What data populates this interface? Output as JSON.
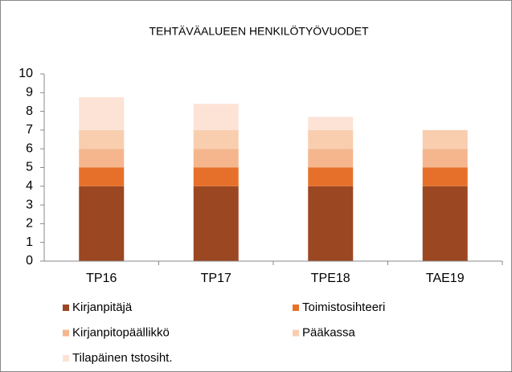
{
  "chart_data": {
    "type": "stacked_bar",
    "title": "TEHTÄVÄALUEEN  HENKILÖTYÖVUODET",
    "categories": [
      "TP16",
      "TP17",
      "TPE18",
      "TAE19"
    ],
    "series": [
      {
        "name": "Kirjanpitäjä",
        "color": "#9b4722",
        "values": [
          4,
          4,
          4,
          4
        ]
      },
      {
        "name": "Toimistosihteeri",
        "color": "#e6702a",
        "values": [
          1,
          1,
          1,
          1
        ]
      },
      {
        "name": "Kirjanpitopäällikkö",
        "color": "#f5b68d",
        "values": [
          1,
          1,
          1,
          1
        ]
      },
      {
        "name": "Pääkassa",
        "color": "#f8ceaf",
        "values": [
          1,
          1,
          1,
          1
        ]
      },
      {
        "name": "Tilapäinen tstosiht.",
        "color": "#fce3d6",
        "values": [
          1.75,
          1.4,
          0.7,
          0
        ]
      }
    ],
    "ylim": [
      0,
      10
    ],
    "yticks": [
      0,
      1,
      2,
      3,
      4,
      5,
      6,
      7,
      8,
      9,
      10
    ],
    "grid": false
  }
}
